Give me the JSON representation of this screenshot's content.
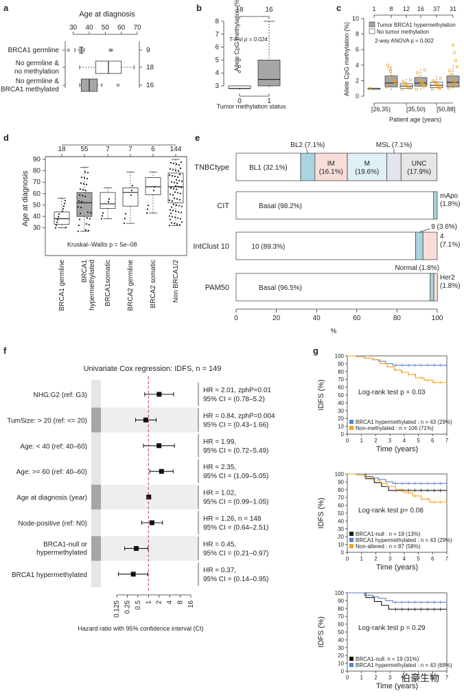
{
  "panels": {
    "a": {
      "label": "a",
      "title": "Age at diagnosis",
      "ticks": [
        "30",
        "40",
        "50",
        "60",
        "70"
      ],
      "groups": [
        {
          "name": "BRCA1 germline",
          "n": "9",
          "min": 31,
          "q1": 34,
          "med": 35,
          "q3": 36,
          "max": 37,
          "outliers": [
            27,
            53,
            54
          ],
          "fill": "#ffffff"
        },
        {
          "name": "No germline &\nno methylation",
          "n": "18",
          "min": 34,
          "q1": 44,
          "med": 52,
          "q3": 60,
          "max": 68,
          "outliers": [],
          "fill": "#ffffff"
        },
        {
          "name": "No germline &\nBRCA1 methylated",
          "n": "16",
          "min": 34,
          "q1": 35,
          "med": 40,
          "q3": 45,
          "max": 48,
          "outliers": [
            58
          ],
          "fill": "#a6a6a6"
        }
      ]
    },
    "b": {
      "label": "b",
      "ylabel": "Allele CpG methylation (%)",
      "xlabel": "Tumor methylation status",
      "ticks": [
        "3",
        "4",
        "5",
        "6",
        "7",
        "8"
      ],
      "xcats": [
        "0",
        "1"
      ],
      "counts": [
        "18",
        "16"
      ],
      "annotation": "T-test p = 0.024",
      "boxes": [
        {
          "min": 2.7,
          "q1": 2.8,
          "med": 2.8,
          "q3": 3.0,
          "max": 3.0,
          "outliers": [
            4.1,
            4.5,
            5.0
          ],
          "fill": "#ffffff"
        },
        {
          "min": 2.9,
          "q1": 3.0,
          "med": 3.5,
          "q3": 5.0,
          "max": 8.0,
          "outliers": [],
          "fill": "#a6a6a6"
        }
      ]
    },
    "c": {
      "label": "c",
      "ylabel": "Allele CpG methylation (%)",
      "xlabel": "Patient age (years)",
      "ticks": [
        "0",
        "2",
        "4",
        "6",
        "8",
        "10"
      ],
      "counts": [
        "1",
        "8",
        "12",
        "16",
        "37",
        "31"
      ],
      "xcats": [
        "[26,35)",
        "[35,50)",
        "[50,88]"
      ],
      "legend": [
        "Tumor BRCA1 hypermethylation",
        "No tumor methylation"
      ],
      "annotation": "2-way ANOVA p = 0.002"
    },
    "d": {
      "label": "d",
      "ylabel": "Age at diagnosis",
      "ticks": [
        "30",
        "40",
        "50",
        "60",
        "70",
        "80",
        "90"
      ],
      "counts": [
        "18",
        "55",
        "7",
        "7",
        "6",
        "144"
      ],
      "groups": [
        "BRCA1 germline",
        "BRCA1\nhypermethylated",
        "BRCA1somatic",
        "BRCA2 germline",
        "BRCA2 somatic",
        "Non BRCA1/2"
      ],
      "annotation": "Kruskal–Wallis p = 5e–08",
      "boxes": [
        {
          "min": 30,
          "q1": 33,
          "med": 38,
          "q3": 44,
          "max": 56
        },
        {
          "min": 27,
          "q1": 40,
          "med": 52,
          "q3": 61,
          "max": 83
        },
        {
          "min": 38,
          "q1": 47,
          "med": 51,
          "q3": 61,
          "max": 65
        },
        {
          "min": 34,
          "q1": 49,
          "med": 61,
          "q3": 65,
          "max": 79
        },
        {
          "min": 43,
          "q1": 59,
          "med": 66,
          "q3": 74,
          "max": 79
        },
        {
          "min": 32,
          "q1": 52,
          "med": 66,
          "q3": 78,
          "max": 90
        }
      ]
    },
    "e": {
      "label": "e",
      "xlabel": "%",
      "ticks": [
        "0",
        "20",
        "40",
        "60",
        "80",
        "100"
      ],
      "rows": [
        {
          "name": "TNBCtype",
          "segments": [
            {
              "label": "BL1 (32.1%)",
              "value": 32.1,
              "color": "#ffffff"
            },
            {
              "label": "BL2 (7.1%)",
              "value": 7.1,
              "color": "#a9d4e0"
            },
            {
              "label": "IM\n(16.1%)",
              "value": 16.1,
              "color": "#f8ddd8"
            },
            {
              "label": "M\n(19.6%)",
              "value": 19.6,
              "color": "#dff0f6"
            },
            {
              "label": "MSL (7.1%)",
              "value": 7.1,
              "color": "#e4e4ef"
            },
            {
              "label": "UNC\n(17.9%)",
              "value": 17.9,
              "color": "#e6e6e6"
            }
          ]
        },
        {
          "name": "CIT",
          "segments": [
            {
              "label": "Basal (98.2%)",
              "value": 98.2,
              "color": "#ffffff"
            },
            {
              "label": "mApo\n(1.8%)",
              "value": 1.8,
              "color": "#a9d4e0"
            }
          ]
        },
        {
          "name": "IntClust 10",
          "segments": [
            {
              "label": "10 (89.3%)",
              "value": 89.3,
              "color": "#ffffff"
            },
            {
              "label": "9 (3.6%)",
              "value": 3.6,
              "color": "#a9d4e0"
            },
            {
              "label": "4\n(7.1%)",
              "value": 7.1,
              "color": "#f8ddd8"
            }
          ]
        },
        {
          "name": "PAM50",
          "segments": [
            {
              "label": "Basal (96.5%)",
              "value": 96.5,
              "color": "#ffffff"
            },
            {
              "label": "Normal (1.8%)",
              "value": 1.8,
              "color": "#a9d4e0"
            },
            {
              "label": "Her2\n(1.8%)",
              "value": 1.8,
              "color": "#f8ddd8"
            }
          ]
        }
      ]
    },
    "f": {
      "label": "f",
      "title": "Univariate Cox regression: IDFS, n = 149",
      "xlabel": "Hazard ratio with 95% confidence interval (CI)",
      "ticks": [
        "0.125",
        "0.25",
        "0.5",
        "1",
        "2",
        "4",
        "8",
        "16"
      ],
      "rows": [
        {
          "name": "NHG:G2 (ref: G3)",
          "hr": 2.01,
          "lo": 0.78,
          "hi": 5.2,
          "line1": "HR = 2.01, zphP=0.01",
          "line2": "95% CI = (0.78–5.2)",
          "shade": false,
          "dark": false
        },
        {
          "name": "TumSize: > 20 (ref: <= 20)",
          "hr": 0.84,
          "lo": 0.43,
          "hi": 1.66,
          "line1": "HR = 0.84, zphP=0.004",
          "line2": "95% CI = (0.43–1.66)",
          "shade": true,
          "dark": true
        },
        {
          "name": "Age: < 40 (ref: 40–60)",
          "hr": 1.99,
          "lo": 0.72,
          "hi": 5.49,
          "line1": "HR = 1.99,",
          "line2": "95% CI = (0.72–5.49)",
          "shade": false,
          "dark": false
        },
        {
          "name": "Age: >= 60 (ref: 40–60)",
          "hr": 2.35,
          "lo": 1.09,
          "hi": 5.05,
          "line1": "HR = 2.35,",
          "line2": "95% CI = (1.09–5.05)",
          "shade": false,
          "dark": false
        },
        {
          "name": "Age at diagnosis (year)",
          "hr": 1.02,
          "lo": 0.99,
          "hi": 1.05,
          "line1": "HR = 1.02,",
          "line2": "95% CI = (0.99–1.05)",
          "shade": true,
          "dark": true
        },
        {
          "name": "Node-positive (ref: N0)",
          "hr": 1.26,
          "lo": 0.64,
          "hi": 2.51,
          "line1": "HR = 1.26, n = 148",
          "line2": "95% CI = (0.64–2.51)",
          "shade": false,
          "dark": false
        },
        {
          "name": "BRCA1-null or\nhypermethylated",
          "hr": 0.45,
          "lo": 0.21,
          "hi": 0.97,
          "line1": "HR = 0.45,",
          "line2": "95% CI = (0.21–0.97)",
          "shade": true,
          "dark": true
        },
        {
          "name": "BRCA1 hypermethylated",
          "hr": 0.37,
          "lo": 0.14,
          "hi": 0.95,
          "line1": "HR = 0.37,",
          "line2": "95% CI = (0.14–0.95)",
          "shade": false,
          "dark": false
        }
      ]
    },
    "g": {
      "label": "g",
      "ylabel": "IDFS (%)",
      "xlabel": "Time (years)",
      "yticks": [
        "0",
        "10",
        "20",
        "30",
        "40",
        "50",
        "60",
        "70",
        "80",
        "90",
        "100"
      ],
      "xticks": [
        "0",
        "1",
        "2",
        "3",
        "4",
        "5",
        "6",
        "7"
      ],
      "plots": [
        {
          "annotation": "Log-rank test p = 0.03",
          "legend": [
            {
              "text": "BRCA1 hypermethylated : n = 43 (29%)",
              "color": "#5a7fcf"
            },
            {
              "text": "Non-methylated : n = 106 (71%)",
              "color": "#f2a21b"
            }
          ],
          "curves": [
            {
              "color": "#5a7fcf",
              "points": [
                [
                  0,
                  100
                ],
                [
                  0.8,
                  100
                ],
                [
                  1.2,
                  97
                ],
                [
                  1.8,
                  95
                ],
                [
                  2.2,
                  93
                ],
                [
                  2.7,
                  90
                ],
                [
                  3.2,
                  88
                ],
                [
                  7,
                  88
                ]
              ]
            },
            {
              "color": "#f2a21b",
              "points": [
                [
                  0,
                  100
                ],
                [
                  0.6,
                  99
                ],
                [
                  1.2,
                  97
                ],
                [
                  1.8,
                  95
                ],
                [
                  2.3,
                  90
                ],
                [
                  2.8,
                  86
                ],
                [
                  3.3,
                  82
                ],
                [
                  3.8,
                  79
                ],
                [
                  4.3,
                  76
                ],
                [
                  4.8,
                  72
                ],
                [
                  5.4,
                  69
                ],
                [
                  6,
                  66
                ],
                [
                  7,
                  65
                ]
              ]
            }
          ]
        },
        {
          "annotation": "Log-rank test p= 0.08",
          "legend": [
            {
              "text": "BRCA1-null : n = 19 (13%)",
              "color": "#111111"
            },
            {
              "text": "BRCA1 hypermethylated : n = 43 (29%)",
              "color": "#5a7fcf"
            },
            {
              "text": "Non-altered : n = 87 (58%)",
              "color": "#f2a21b"
            }
          ],
          "curves": [
            {
              "color": "#111111",
              "points": [
                [
                  0,
                  100
                ],
                [
                  0.9,
                  100
                ],
                [
                  1.3,
                  94
                ],
                [
                  1.9,
                  89
                ],
                [
                  2.4,
                  84
                ],
                [
                  2.9,
                  79
                ],
                [
                  7,
                  79
                ]
              ]
            },
            {
              "color": "#5a7fcf",
              "points": [
                [
                  0,
                  100
                ],
                [
                  0.8,
                  100
                ],
                [
                  1.2,
                  97
                ],
                [
                  1.8,
                  95
                ],
                [
                  2.2,
                  93
                ],
                [
                  2.7,
                  90
                ],
                [
                  3.2,
                  88
                ],
                [
                  7,
                  88
                ]
              ]
            },
            {
              "color": "#f2a21b",
              "points": [
                [
                  0,
                  100
                ],
                [
                  0.6,
                  99
                ],
                [
                  1.2,
                  96
                ],
                [
                  1.8,
                  92
                ],
                [
                  2.3,
                  88
                ],
                [
                  2.8,
                  84
                ],
                [
                  3.4,
                  80
                ],
                [
                  4,
                  76
                ],
                [
                  4.6,
                  72
                ],
                [
                  5.2,
                  68
                ],
                [
                  5.8,
                  64
                ],
                [
                  7,
                  63
                ]
              ]
            }
          ]
        },
        {
          "annotation": "Log-rank test p = 0.29",
          "legend": [
            {
              "text": "BRCA1-null: n = 19 (31%)",
              "color": "#111111"
            },
            {
              "text": "BRCA1 hypermethylated : n = 43 (69%)",
              "color": "#5a7fcf"
            }
          ],
          "curves": [
            {
              "color": "#111111",
              "points": [
                [
                  0,
                  100
                ],
                [
                  0.9,
                  100
                ],
                [
                  1.3,
                  94
                ],
                [
                  1.9,
                  89
                ],
                [
                  2.4,
                  84
                ],
                [
                  2.9,
                  79
                ],
                [
                  7,
                  79
                ]
              ]
            },
            {
              "color": "#5a7fcf",
              "points": [
                [
                  0,
                  100
                ],
                [
                  0.8,
                  100
                ],
                [
                  1.2,
                  97
                ],
                [
                  1.8,
                  95
                ],
                [
                  2.2,
                  93
                ],
                [
                  2.7,
                  90
                ],
                [
                  3.2,
                  88
                ],
                [
                  7,
                  88
                ]
              ]
            }
          ]
        }
      ]
    }
  },
  "watermark": "伯豪生物"
}
